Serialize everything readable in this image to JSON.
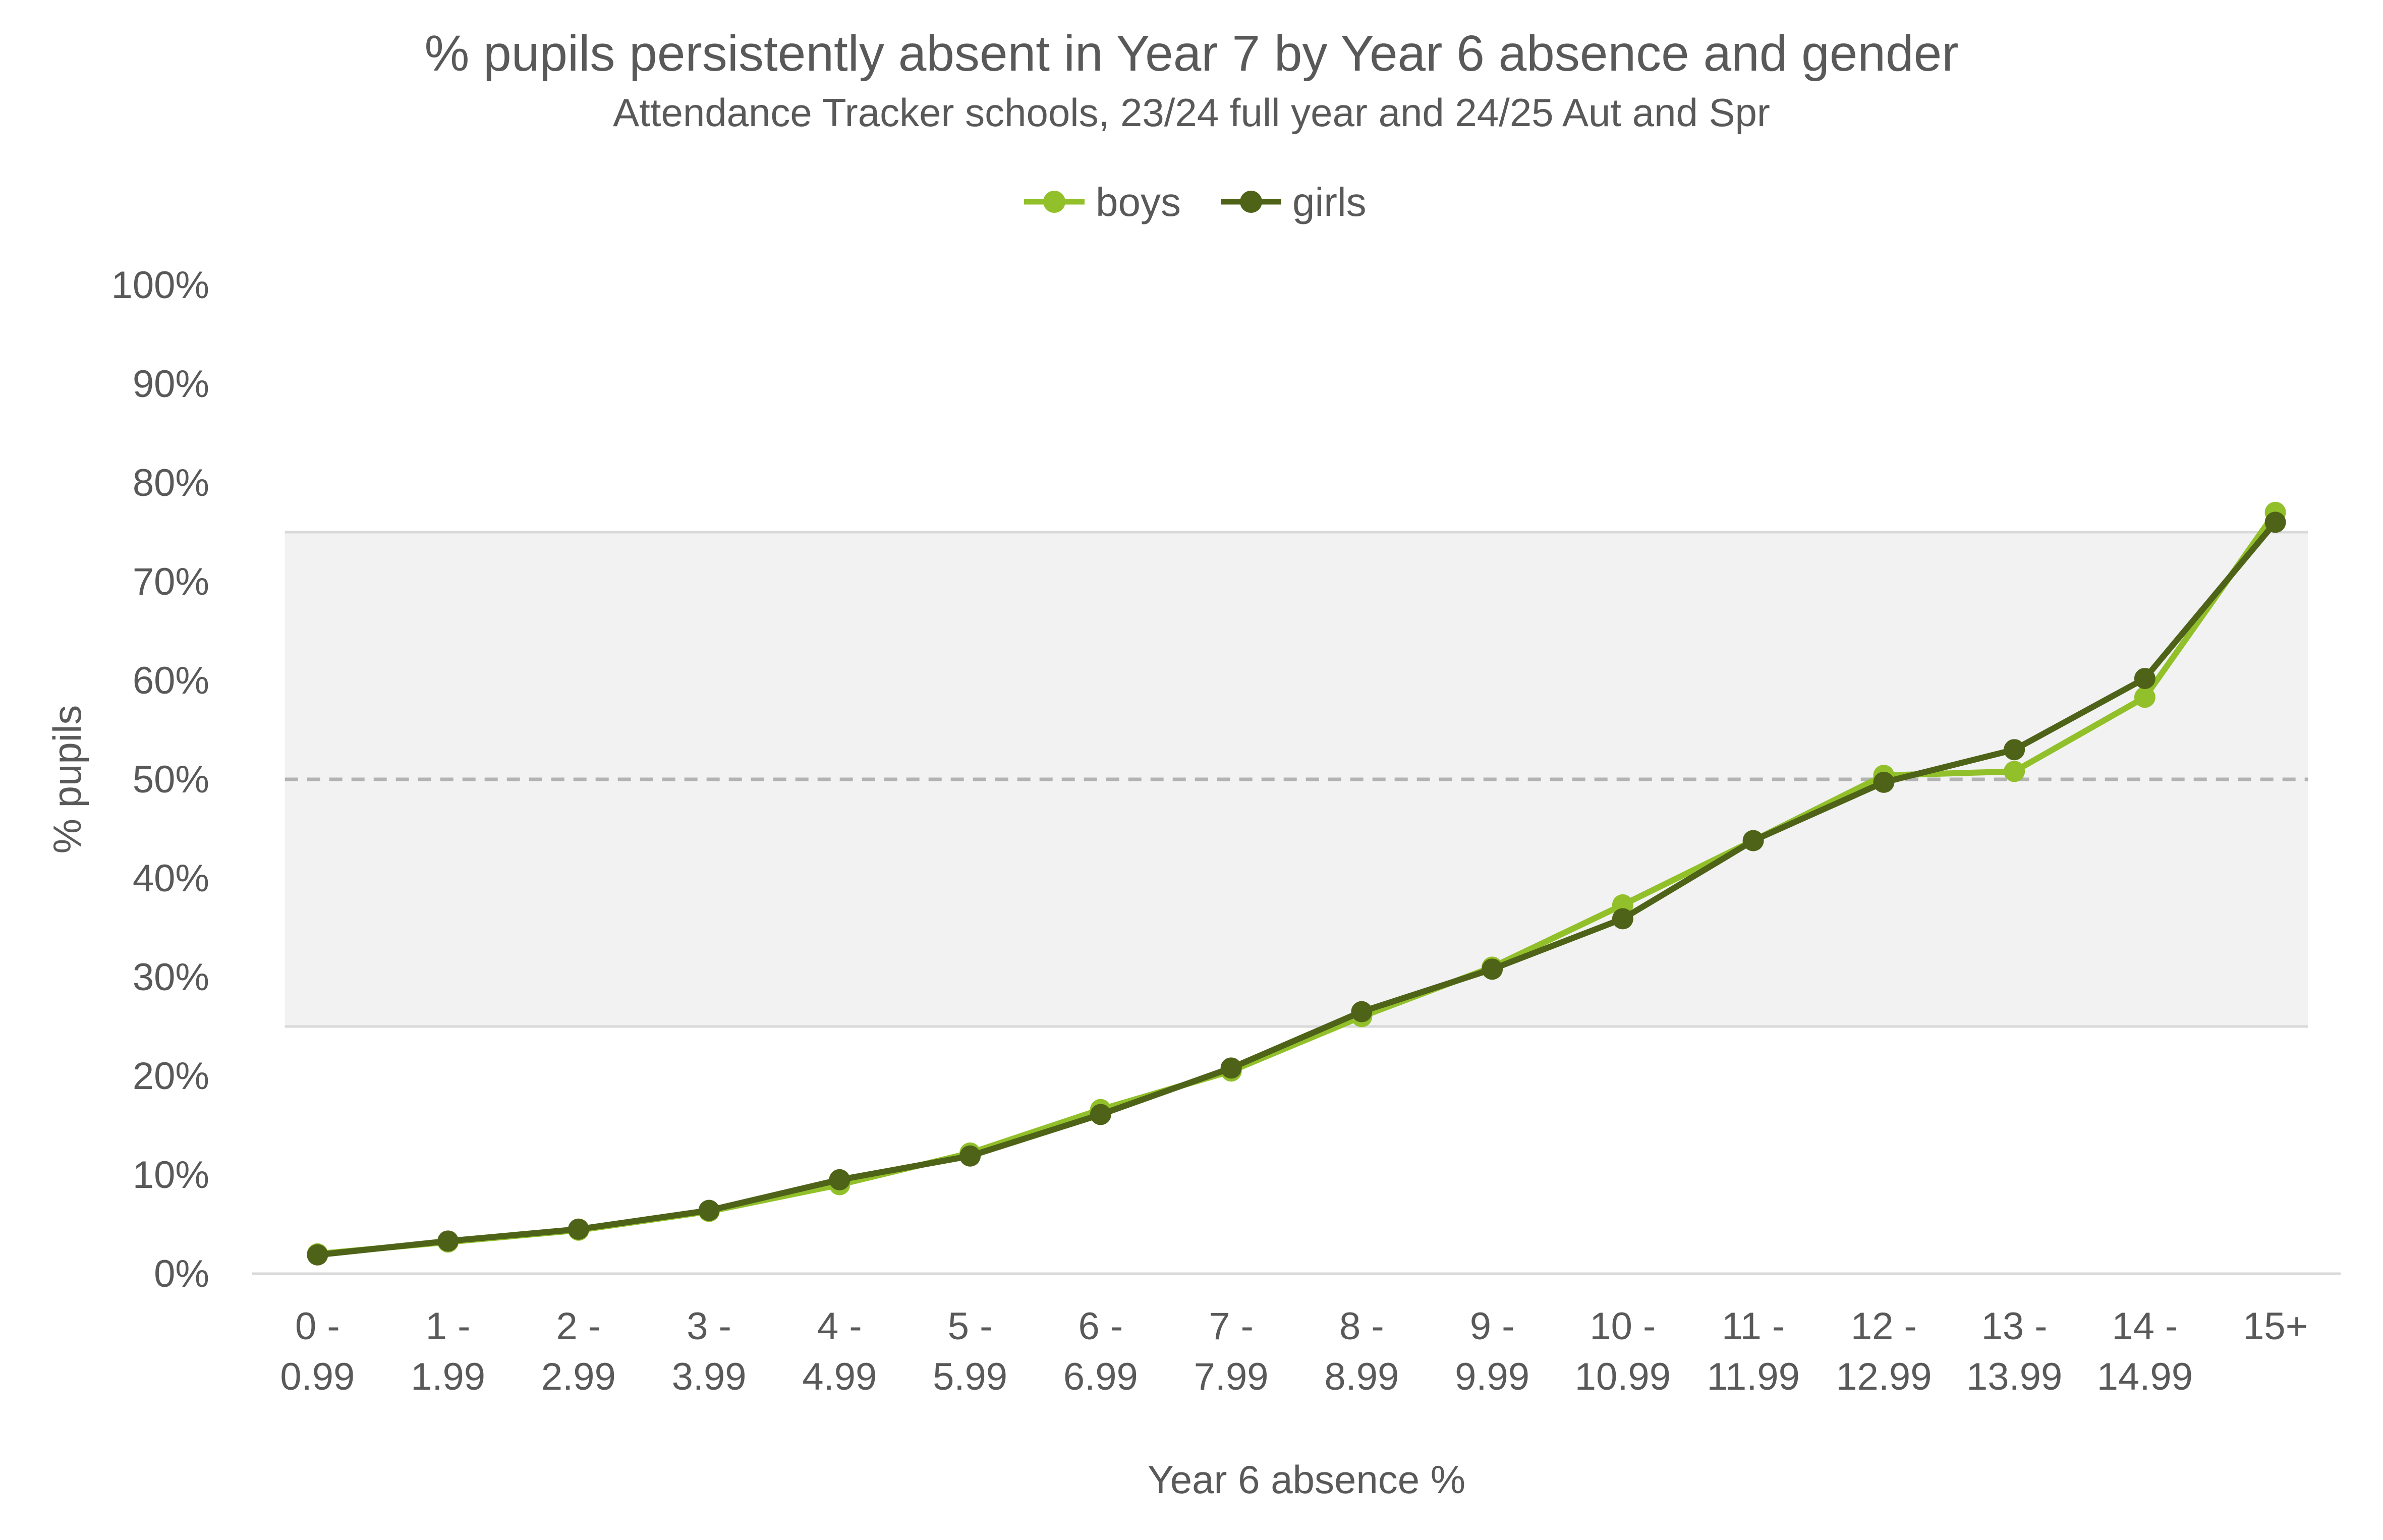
{
  "chart_data": {
    "type": "line",
    "title": "% pupils persistently absent in Year 7 by Year 6 absence and gender",
    "subtitle": "Attendance Tracker schools, 23/24 full year and 24/25 Aut and Spr",
    "xlabel": "Year 6 absence %",
    "ylabel": "% pupils",
    "categories": [
      [
        "0 -",
        "0.99"
      ],
      [
        "1 -",
        "1.99"
      ],
      [
        "2 -",
        "2.99"
      ],
      [
        "3 -",
        "3.99"
      ],
      [
        "4 -",
        "4.99"
      ],
      [
        "5 -",
        "5.99"
      ],
      [
        "6 -",
        "6.99"
      ],
      [
        "7 -",
        "7.99"
      ],
      [
        "8 -",
        "8.99"
      ],
      [
        "9 -",
        "9.99"
      ],
      [
        "10 -",
        "10.99"
      ],
      [
        "11 -",
        "11.99"
      ],
      [
        "12 -",
        "12.99"
      ],
      [
        "13 -",
        "13.99"
      ],
      [
        "14 -",
        "14.99"
      ],
      [
        "15+"
      ]
    ],
    "y_ticks": [
      "0%",
      "10%",
      "20%",
      "30%",
      "40%",
      "50%",
      "60%",
      "70%",
      "80%",
      "90%",
      "100%"
    ],
    "ylim": [
      0,
      100
    ],
    "shaded_band": [
      25,
      75
    ],
    "reference_line": 50,
    "legend_position": "top",
    "grid": false,
    "series": [
      {
        "name": "boys",
        "color": "#92c02a",
        "values": [
          2,
          3.2,
          4.4,
          6.3,
          9,
          12.2,
          16.6,
          20.5,
          26,
          31,
          37.3,
          43.8,
          50.4,
          50.8,
          58.3,
          77
        ]
      },
      {
        "name": "girls",
        "color": "#4e6318",
        "values": [
          1.9,
          3.3,
          4.5,
          6.4,
          9.5,
          11.9,
          16.1,
          20.8,
          26.5,
          30.8,
          35.9,
          43.8,
          49.7,
          53,
          60.2,
          76
        ]
      }
    ]
  }
}
